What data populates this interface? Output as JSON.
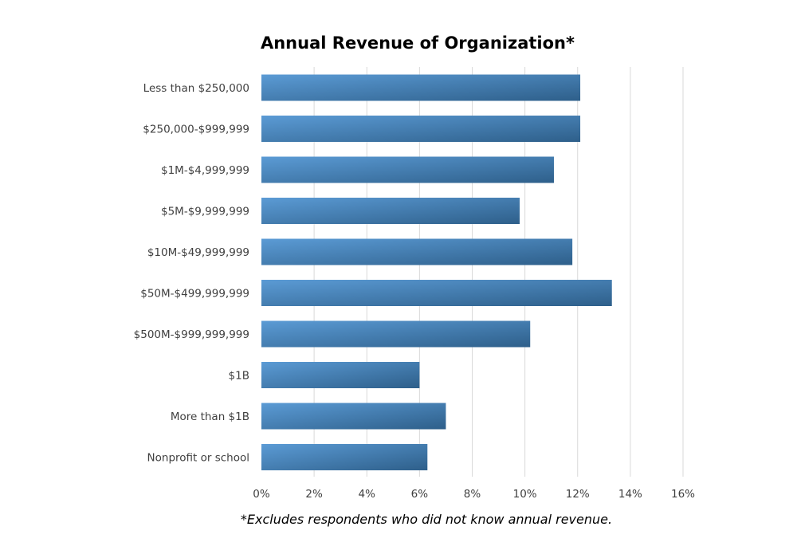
{
  "chart_data": {
    "type": "bar",
    "orientation": "horizontal",
    "title": "Annual Revenue of Organization*",
    "footnote": "*Excludes respondents who did not know annual revenue.",
    "categories": [
      "Less than $250,000",
      "$250,000-$999,999",
      "$1M-$4,999,999",
      "$5M-$9,999,999",
      "$10M-$49,999,999",
      "$50M-$499,999,999",
      "$500M-$999,999,999",
      "$1B",
      "More than $1B",
      "Nonprofit or school"
    ],
    "values": [
      12.1,
      12.1,
      11.1,
      9.8,
      11.8,
      13.3,
      10.2,
      6.0,
      7.0,
      6.3
    ],
    "xlim": [
      0,
      16
    ],
    "x_ticks": [
      "0%",
      "2%",
      "4%",
      "6%",
      "8%",
      "10%",
      "12%",
      "14%",
      "16%"
    ],
    "xlabel": "",
    "ylabel": "",
    "grid": "vertical",
    "legend": "none",
    "colors": {
      "bar_light": "#5b9bd5",
      "bar_dark": "#2e5f8a",
      "gridline": "#d9d9d9",
      "label": "#404040"
    }
  }
}
